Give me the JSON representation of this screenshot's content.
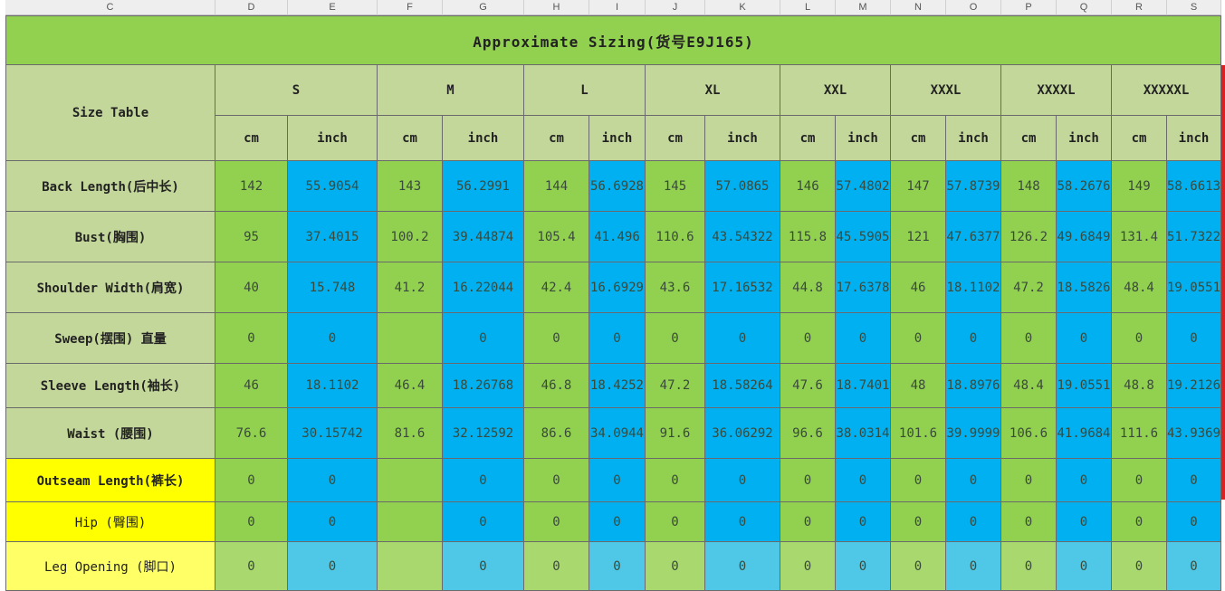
{
  "column_headers": [
    "C",
    "D",
    "E",
    "F",
    "G",
    "H",
    "I",
    "J",
    "K",
    "L",
    "M",
    "N",
    "O",
    "P",
    "Q",
    "R",
    "S"
  ],
  "title": "Approximate Sizing(货号E9J165)",
  "corner_label": "Size Table",
  "sizes": [
    "S",
    "M",
    "L",
    "XL",
    "XXL",
    "XXXL",
    "XXXXL",
    "XXXXXL"
  ],
  "unit_cm": "cm",
  "unit_inch": "inch",
  "rows": [
    {
      "label": "Back Length(后中长)",
      "values": [
        "142",
        "55.9054",
        "143",
        "56.2991",
        "144",
        "56.6928",
        "145",
        "57.0865",
        "146",
        "57.4802",
        "147",
        "57.8739",
        "148",
        "58.2676",
        "149",
        "58.6613"
      ]
    },
    {
      "label": "Bust(胸围)",
      "values": [
        "95",
        "37.4015",
        "100.2",
        "39.44874",
        "105.4",
        "41.496",
        "110.6",
        "43.54322",
        "115.8",
        "45.5905",
        "121",
        "47.6377",
        "126.2",
        "49.6849",
        "131.4",
        "51.7322"
      ]
    },
    {
      "label": "Shoulder Width(肩宽)",
      "values": [
        "40",
        "15.748",
        "41.2",
        "16.22044",
        "42.4",
        "16.6929",
        "43.6",
        "17.16532",
        "44.8",
        "17.6378",
        "46",
        "18.1102",
        "47.2",
        "18.5826",
        "48.4",
        "19.0551"
      ]
    },
    {
      "label": "Sweep(摆围) 直量",
      "values": [
        "0",
        "0",
        "",
        "0",
        "0",
        "0",
        "0",
        "0",
        "0",
        "0",
        "0",
        "0",
        "0",
        "0",
        "0",
        "0"
      ]
    },
    {
      "label": "Sleeve Length(袖长)",
      "values": [
        "46",
        "18.1102",
        "46.4",
        "18.26768",
        "46.8",
        "18.4252",
        "47.2",
        "18.58264",
        "47.6",
        "18.7401",
        "48",
        "18.8976",
        "48.4",
        "19.0551",
        "48.8",
        "19.2126"
      ]
    },
    {
      "label": "Waist (腰围)",
      "values": [
        "76.6",
        "30.15742",
        "81.6",
        "32.12592",
        "86.6",
        "34.0944",
        "91.6",
        "36.06292",
        "96.6",
        "38.0314",
        "101.6",
        "39.9999",
        "106.6",
        "41.9684",
        "111.6",
        "43.9369"
      ]
    },
    {
      "label": "Outseam Length(裤长)",
      "values": [
        "0",
        "0",
        "",
        "0",
        "0",
        "0",
        "0",
        "0",
        "0",
        "0",
        "0",
        "0",
        "0",
        "0",
        "0",
        "0"
      ]
    },
    {
      "label": "Hip (臀围)",
      "values": [
        "0",
        "0",
        "",
        "0",
        "0",
        "0",
        "0",
        "0",
        "0",
        "0",
        "0",
        "0",
        "0",
        "0",
        "0",
        "0"
      ]
    },
    {
      "label": "Leg Opening (脚口)",
      "values": [
        "0",
        "0",
        "",
        "0",
        "0",
        "0",
        "0",
        "0",
        "0",
        "0",
        "0",
        "0",
        "0",
        "0",
        "0",
        "0"
      ]
    }
  ],
  "colors": {
    "title_bg": "#92d050",
    "header_bg": "#c4d79b",
    "cm_bg": "#92d050",
    "inch_bg": "#00b0f0",
    "yellow_label_bg": "#ffff00",
    "light_yellow_label_bg": "#ffff66",
    "light_cm_bg": "#a9d86e",
    "light_inch_bg": "#4fc8e8",
    "grid_border": "#6a6a6a"
  }
}
